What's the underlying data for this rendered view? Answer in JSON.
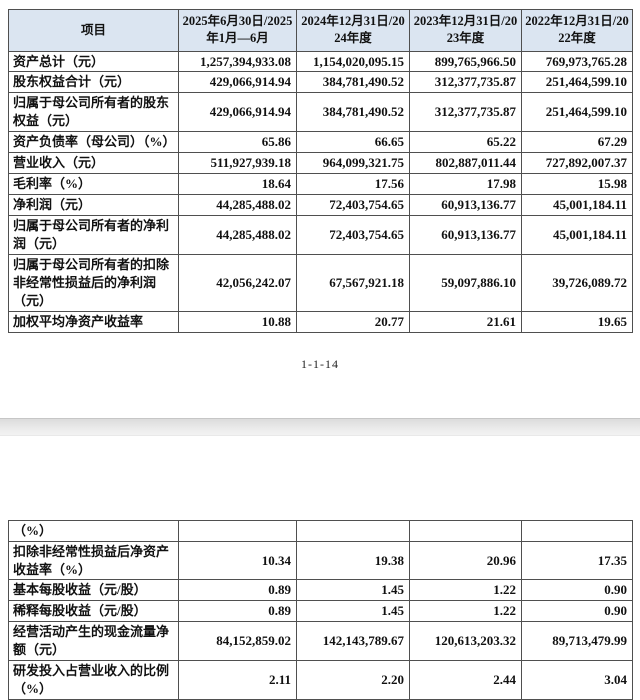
{
  "colors": {
    "header_bg": "#dbe5f1",
    "table_border": "#4f4f4f",
    "separator_bg": "#ebebeb"
  },
  "page1": {
    "footer_page_number": "1-1-14",
    "table": {
      "headers": [
        "项目",
        "2025年6月30日/2025年1月—6月",
        "2024年12月31日/2024年度",
        "2023年12月31日/2023年度",
        "2022年12月31日/2022年度"
      ],
      "rows": [
        {
          "label": "资产总计（元）",
          "values": [
            "1,257,394,933.08",
            "1,154,020,095.15",
            "899,765,966.50",
            "769,973,765.28"
          ]
        },
        {
          "label": "股东权益合计（元）",
          "values": [
            "429,066,914.94",
            "384,781,490.52",
            "312,377,735.87",
            "251,464,599.10"
          ]
        },
        {
          "label": "归属于母公司所有者的股东权益（元）",
          "values": [
            "429,066,914.94",
            "384,781,490.52",
            "312,377,735.87",
            "251,464,599.10"
          ]
        },
        {
          "label": "资产负债率（母公司）（%）",
          "values": [
            "65.86",
            "66.65",
            "65.22",
            "67.29"
          ]
        },
        {
          "label": "营业收入（元）",
          "values": [
            "511,927,939.18",
            "964,099,321.75",
            "802,887,011.44",
            "727,892,007.37"
          ]
        },
        {
          "label": "毛利率（%）",
          "values": [
            "18.64",
            "17.56",
            "17.98",
            "15.98"
          ]
        },
        {
          "label": "净利润（元）",
          "values": [
            "44,285,488.02",
            "72,403,754.65",
            "60,913,136.77",
            "45,001,184.11"
          ]
        },
        {
          "label": "归属于母公司所有者的净利润（元）",
          "values": [
            "44,285,488.02",
            "72,403,754.65",
            "60,913,136.77",
            "45,001,184.11"
          ]
        },
        {
          "label": "归属于母公司所有者的扣除非经常性损益后的净利润（元）",
          "values": [
            "42,056,242.07",
            "67,567,921.18",
            "59,097,886.10",
            "39,726,089.72"
          ]
        },
        {
          "label": "加权平均净资产收益率",
          "values": [
            "10.88",
            "20.77",
            "21.61",
            "19.65"
          ]
        }
      ]
    }
  },
  "page2": {
    "table": {
      "rows": [
        {
          "label": "（%）",
          "values": [
            "",
            "",
            "",
            ""
          ]
        },
        {
          "label": "扣除非经常性损益后净资产收益率（%）",
          "values": [
            "10.34",
            "19.38",
            "20.96",
            "17.35"
          ]
        },
        {
          "label": "基本每股收益（元/股）",
          "values": [
            "0.89",
            "1.45",
            "1.22",
            "0.90"
          ]
        },
        {
          "label": "稀释每股收益（元/股）",
          "values": [
            "0.89",
            "1.45",
            "1.22",
            "0.90"
          ]
        },
        {
          "label": "经营活动产生的现金流量净额（元）",
          "values": [
            "84,152,859.02",
            "142,143,789.67",
            "120,613,203.32",
            "89,713,479.99"
          ]
        },
        {
          "label": "研发投入占营业收入的比例（%）",
          "values": [
            "2.11",
            "2.20",
            "2.44",
            "3.04"
          ]
        }
      ]
    }
  }
}
